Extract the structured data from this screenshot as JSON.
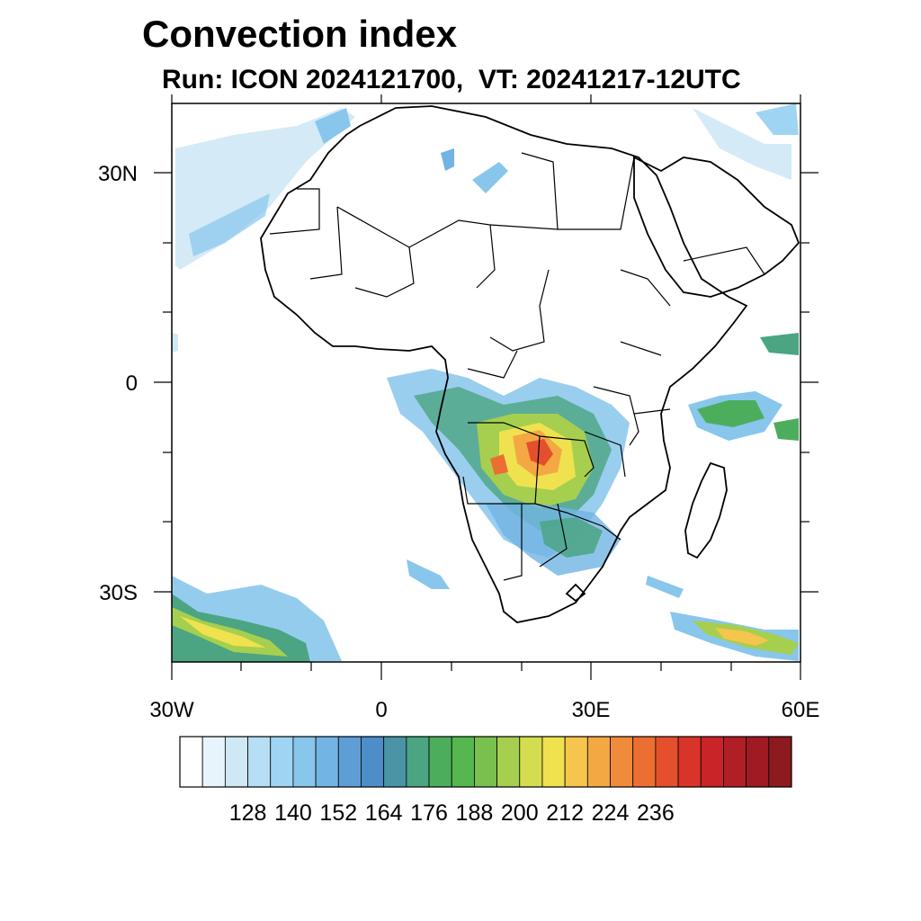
{
  "title": "Convection index",
  "subtitle": "Run: ICON 2024121700,  VT: 20241217-12UTC",
  "map": {
    "x_ticks": [
      "30W",
      "0",
      "30E",
      "60E"
    ],
    "y_ticks": [
      "30N",
      "0",
      "30S"
    ]
  },
  "colorbar": {
    "labels": [
      "128",
      "140",
      "152",
      "164",
      "176",
      "188",
      "200",
      "212",
      "224",
      "236"
    ],
    "colors": [
      "#ffffff",
      "#e8f4fb",
      "#cfe8f6",
      "#b6def5",
      "#9fd5f3",
      "#88c6ec",
      "#72b4e3",
      "#5e9ed6",
      "#4e8ec8",
      "#4a94a7",
      "#4ba582",
      "#4cae5d",
      "#55b74d",
      "#79c04f",
      "#a6cf4f",
      "#d3dd4f",
      "#f0e24f",
      "#f6c54d",
      "#f4a843",
      "#f08b3b",
      "#ec6e33",
      "#e4502d",
      "#d93429",
      "#c92428",
      "#b21e26",
      "#9f1a22",
      "#8c1a1e"
    ]
  }
}
